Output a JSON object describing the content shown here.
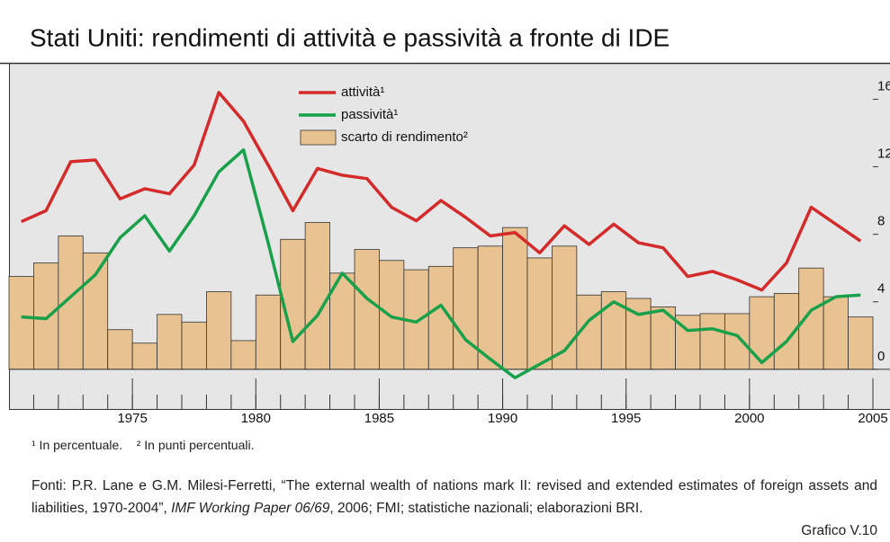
{
  "chart_data": {
    "type": "line-bar",
    "title": "Stati Uniti: rendimenti di attività e passività a fronte di IDE",
    "x": [
      1970,
      1971,
      1972,
      1973,
      1974,
      1975,
      1976,
      1977,
      1978,
      1979,
      1980,
      1981,
      1982,
      1983,
      1984,
      1985,
      1986,
      1987,
      1988,
      1989,
      1990,
      1991,
      1992,
      1993,
      1994,
      1995,
      1996,
      1997,
      1998,
      1999,
      2000,
      2001,
      2002,
      2003,
      2004
    ],
    "series": [
      {
        "name": "scarto di rendimento²",
        "kind": "bar",
        "color": "#e8c291",
        "values": [
          5.5,
          6.3,
          7.9,
          6.9,
          2.35,
          1.55,
          3.25,
          2.8,
          4.6,
          1.7,
          4.4,
          7.7,
          8.7,
          5.7,
          7.1,
          6.45,
          5.9,
          6.1,
          7.2,
          7.3,
          8.4,
          6.6,
          7.3,
          4.4,
          4.6,
          4.2,
          3.7,
          3.2,
          3.3,
          3.3,
          4.3,
          4.5,
          6.0,
          4.3,
          3.1
        ]
      },
      {
        "name": "attività¹",
        "kind": "line",
        "color": "#d42a2a",
        "values": [
          8.75,
          9.4,
          12.3,
          12.4,
          10.1,
          10.7,
          10.4,
          12.1,
          16.4,
          14.7,
          12.1,
          9.4,
          11.9,
          11.5,
          11.3,
          9.6,
          8.8,
          10.0,
          9.0,
          7.9,
          8.1,
          6.9,
          8.5,
          7.4,
          8.6,
          7.5,
          7.2,
          5.5,
          5.8,
          5.3,
          4.7,
          6.3,
          9.6,
          8.6,
          7.6
        ]
      },
      {
        "name": "passività¹",
        "kind": "line",
        "color": "#19a04a",
        "values": [
          3.1,
          3.0,
          4.3,
          5.6,
          7.8,
          9.1,
          7.0,
          9.1,
          11.7,
          13.0,
          7.5,
          1.65,
          3.2,
          5.7,
          4.2,
          3.1,
          2.8,
          3.8,
          1.75,
          0.6,
          -0.5,
          0.3,
          1.1,
          2.9,
          4.0,
          3.25,
          3.5,
          2.3,
          2.4,
          2.0,
          0.4,
          1.65,
          3.5,
          4.3,
          4.4
        ]
      }
    ],
    "legend_order": [
      1,
      2,
      0
    ],
    "xlim": [
      1970,
      2005
    ],
    "xticks": [
      1975,
      1980,
      1985,
      1990,
      1995,
      2000,
      2005
    ],
    "xminor_step": 1,
    "ylim": [
      -2.35,
      18.1
    ],
    "yticks": [
      0,
      4,
      8,
      12,
      16
    ],
    "grid": false
  },
  "notes": [
    "¹ In percentuale.",
    "² In punti percentuali."
  ],
  "sources": {
    "before": "Fonti: P.R. Lane e G.M. Milesi-Ferretti, “The external wealth of nations mark II: revised and extended estimates of foreign assets and liabilities, 1970-2004”, ",
    "italic": "IMF Working Paper 06/69",
    "after": ", 2006; FMI; statistiche nazionali; elaborazioni BRI."
  },
  "figure_label": "Grafico V.10"
}
